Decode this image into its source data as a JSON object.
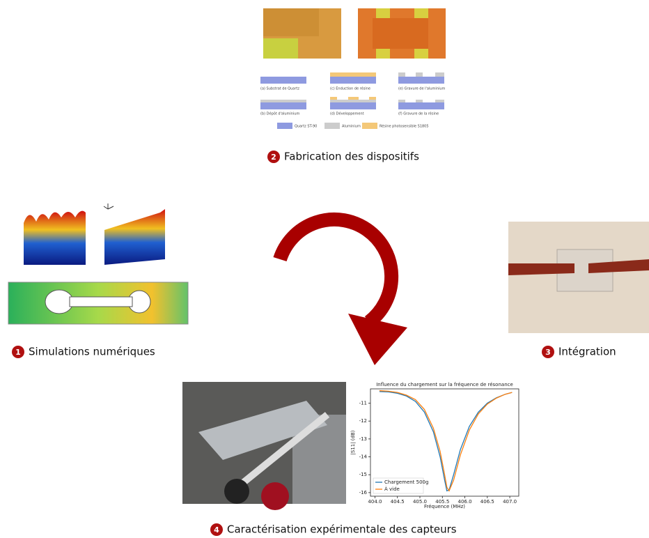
{
  "fabrication": {
    "steps": [
      "(a) Substrat de Quartz",
      "(c) Enduction de résine",
      "(e) Gravure de l'aluminium",
      "(b) Dépôt d'aluminium",
      "(d) Développement",
      "(f) Gravure de la résine"
    ],
    "legend": [
      "Quartz ST-90",
      "Aluminium",
      "Résine photosensible S1805"
    ]
  },
  "workflow": [
    {
      "number": 1,
      "label": "Simulations numériques"
    },
    {
      "number": 2,
      "label": "Fabrication des dispositifs"
    },
    {
      "number": 3,
      "label": "Intégration"
    },
    {
      "number": 4,
      "label": "Caractérisation expérimentale des capteurs"
    }
  ],
  "chart_data": {
    "type": "line",
    "title": "Influence du chargement sur la fréquence de résonance",
    "x_label": "Fréquence (MHz)",
    "y_label": "|S11| (dB)",
    "x": [
      404.1,
      404.3,
      404.5,
      404.7,
      404.9,
      405.1,
      405.3,
      405.45,
      405.55,
      405.6,
      405.65,
      405.75,
      405.9,
      406.1,
      406.3,
      406.5,
      406.7,
      406.9,
      407.05
    ],
    "series": [
      {
        "name": "Chargement 500g",
        "color": "#1f77b4",
        "values": [
          -10.35,
          -10.37,
          -10.45,
          -10.6,
          -10.9,
          -11.5,
          -12.6,
          -14.0,
          -15.3,
          -15.9,
          -15.85,
          -15.0,
          -13.6,
          -12.3,
          -11.5,
          -11.0,
          -10.7,
          -10.5,
          -10.4
        ]
      },
      {
        "name": "À vide",
        "color": "#ff7f0e",
        "values": [
          -10.3,
          -10.33,
          -10.4,
          -10.55,
          -10.8,
          -11.35,
          -12.4,
          -13.7,
          -15.0,
          -15.7,
          -15.9,
          -15.3,
          -13.9,
          -12.5,
          -11.6,
          -11.05,
          -10.72,
          -10.5,
          -10.4
        ]
      }
    ],
    "xlim": [
      403.9,
      407.2
    ],
    "ylim": [
      -16.2,
      -10.2
    ],
    "xticks": [
      {
        "value": 404,
        "label": "404.0"
      },
      404.5,
      {
        "value": 405,
        "label": "405.0"
      },
      405.5,
      {
        "value": 406,
        "label": "406.0"
      },
      406.5,
      {
        "value": 407,
        "label": "407.0"
      }
    ],
    "yticks": [
      -11,
      -12,
      -13,
      -14,
      -15,
      -16
    ],
    "legend": "lower left"
  }
}
